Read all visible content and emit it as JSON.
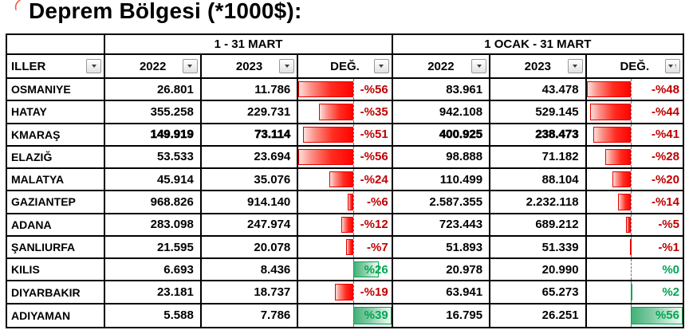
{
  "title": "Deprem Bölgesi (*1000$):",
  "icons": {
    "filter_dropdown": "filter-dropdown-arrow",
    "sort_ascending": "↑"
  },
  "colors": {
    "border": "#000000",
    "negative_text": "#C00000",
    "positive_text": "#00A651",
    "negative_bar": "#FF0000",
    "positive_bar": "#43B177",
    "annotation_red": "#FF5540"
  },
  "table": {
    "group_headers": {
      "corner": "",
      "mart": "1 - 31 MART",
      "ytd": "1 OCAK  -  31 MART"
    },
    "columns": [
      "ILLER",
      "2022",
      "2023",
      "DEĞ.",
      "2022",
      "2023",
      "DEĞ."
    ],
    "deg_scales": {
      "mart": {
        "min": -56,
        "max": 39
      },
      "ytd": {
        "min": -48,
        "max": 56
      }
    },
    "rows": [
      {
        "il": "OSMANIYE",
        "mart_2022": "26.801",
        "mart_2023": "11.786",
        "mart_deg": -56,
        "mart_deg_label": "-%56",
        "ytd_2022": "83.961",
        "ytd_2023": "43.478",
        "ytd_deg": -48,
        "ytd_deg_label": "-%48",
        "bold": false
      },
      {
        "il": "HATAY",
        "mart_2022": "355.258",
        "mart_2023": "229.731",
        "mart_deg": -35,
        "mart_deg_label": "-%35",
        "ytd_2022": "942.108",
        "ytd_2023": "529.145",
        "ytd_deg": -44,
        "ytd_deg_label": "-%44",
        "bold": false
      },
      {
        "il": "KMARAŞ",
        "mart_2022": "149.919",
        "mart_2023": "73.114",
        "mart_deg": -51,
        "mart_deg_label": "-%51",
        "ytd_2022": "400.925",
        "ytd_2023": "238.473",
        "ytd_deg": -41,
        "ytd_deg_label": "-%41",
        "bold": true
      },
      {
        "il": "ELAZIĞ",
        "mart_2022": "53.533",
        "mart_2023": "23.694",
        "mart_deg": -56,
        "mart_deg_label": "-%56",
        "ytd_2022": "98.888",
        "ytd_2023": "71.182",
        "ytd_deg": -28,
        "ytd_deg_label": "-%28",
        "bold": false
      },
      {
        "il": "MALATYA",
        "mart_2022": "45.914",
        "mart_2023": "35.076",
        "mart_deg": -24,
        "mart_deg_label": "-%24",
        "ytd_2022": "110.499",
        "ytd_2023": "88.104",
        "ytd_deg": -20,
        "ytd_deg_label": "-%20",
        "bold": false
      },
      {
        "il": "GAZIANTEP",
        "mart_2022": "968.826",
        "mart_2023": "914.140",
        "mart_deg": -6,
        "mart_deg_label": "-%6",
        "ytd_2022": "2.587.355",
        "ytd_2023": "2.232.118",
        "ytd_deg": -14,
        "ytd_deg_label": "-%14",
        "bold": false
      },
      {
        "il": "ADANA",
        "mart_2022": "283.098",
        "mart_2023": "247.974",
        "mart_deg": -12,
        "mart_deg_label": "-%12",
        "ytd_2022": "723.443",
        "ytd_2023": "689.212",
        "ytd_deg": -5,
        "ytd_deg_label": "-%5",
        "bold": false
      },
      {
        "il": "ŞANLIURFA",
        "mart_2022": "21.595",
        "mart_2023": "20.078",
        "mart_deg": -7,
        "mart_deg_label": "-%7",
        "ytd_2022": "51.893",
        "ytd_2023": "51.339",
        "ytd_deg": -1,
        "ytd_deg_label": "-%1",
        "bold": false
      },
      {
        "il": "KILIS",
        "mart_2022": "6.693",
        "mart_2023": "8.436",
        "mart_deg": 26,
        "mart_deg_label": "%26",
        "ytd_2022": "20.978",
        "ytd_2023": "20.990",
        "ytd_deg": 0,
        "ytd_deg_label": "%0",
        "bold": false
      },
      {
        "il": "DIYARBAKIR",
        "mart_2022": "23.181",
        "mart_2023": "18.737",
        "mart_deg": -19,
        "mart_deg_label": "-%19",
        "ytd_2022": "63.941",
        "ytd_2023": "65.273",
        "ytd_deg": 2,
        "ytd_deg_label": "%2",
        "bold": false
      },
      {
        "il": "ADIYAMAN",
        "mart_2022": "5.588",
        "mart_2023": "7.786",
        "mart_deg": 39,
        "mart_deg_label": "%39",
        "ytd_2022": "16.795",
        "ytd_2023": "26.251",
        "ytd_deg": 56,
        "ytd_deg_label": "%56",
        "bold": false
      }
    ]
  }
}
